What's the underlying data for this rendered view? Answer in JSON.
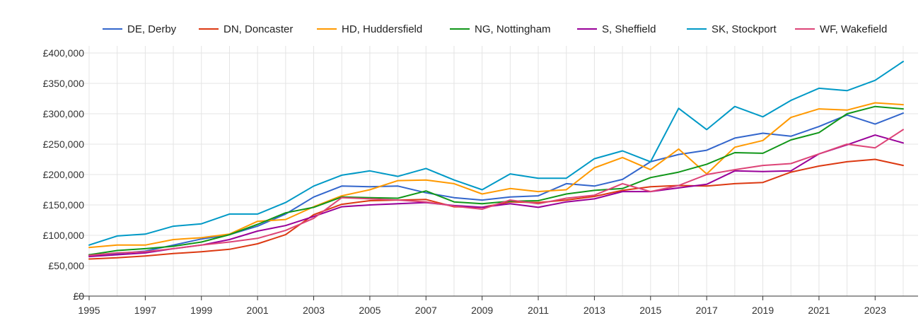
{
  "chart_data": {
    "type": "line",
    "title": "",
    "xlabel": "",
    "ylabel": "",
    "x": [
      1995,
      1996,
      1997,
      1998,
      1999,
      2000,
      2001,
      2002,
      2003,
      2004,
      2005,
      2006,
      2007,
      2008,
      2009,
      2010,
      2011,
      2012,
      2013,
      2014,
      2015,
      2016,
      2017,
      2018,
      2019,
      2020,
      2021,
      2022,
      2023,
      2024
    ],
    "xlim": [
      1995,
      2024
    ],
    "ylim": [
      0,
      400000
    ],
    "x_ticks": [
      1995,
      1997,
      1999,
      2001,
      2003,
      2005,
      2007,
      2009,
      2011,
      2013,
      2015,
      2017,
      2019,
      2021,
      2023
    ],
    "x_tick_labels": [
      "1995",
      "1997",
      "1999",
      "2001",
      "2003",
      "2005",
      "2007",
      "2009",
      "2011",
      "2013",
      "2015",
      "2017",
      "2019",
      "2021",
      "2023"
    ],
    "y_ticks": [
      0,
      50000,
      100000,
      150000,
      200000,
      250000,
      300000,
      350000,
      400000
    ],
    "y_tick_labels": [
      "£0",
      "£50,000",
      "£100,000",
      "£150,000",
      "£200,000",
      "£250,000",
      "£300,000",
      "£350,000",
      "£400,000"
    ],
    "grid": true,
    "legend": "top",
    "series": [
      {
        "name": "DE, Derby",
        "color": "#3366cc",
        "values": [
          67000,
          70000,
          74000,
          84000,
          94000,
          101000,
          115000,
          135000,
          163000,
          181000,
          180000,
          181000,
          170000,
          162000,
          158000,
          163000,
          165000,
          185000,
          181000,
          192000,
          221000,
          233000,
          240000,
          260000,
          268000,
          263000,
          279000,
          298000,
          283000,
          301000
        ]
      },
      {
        "name": "DN, Doncaster",
        "color": "#dc3912",
        "values": [
          61000,
          63000,
          66000,
          70000,
          73000,
          77000,
          86000,
          101000,
          134000,
          151000,
          157000,
          158000,
          159000,
          147000,
          146000,
          155000,
          154000,
          158000,
          164000,
          174000,
          180000,
          182000,
          181000,
          185000,
          187000,
          204000,
          214000,
          221000,
          225000,
          215000
        ]
      },
      {
        "name": "HD, Huddersfield",
        "color": "#ff9900",
        "values": [
          80000,
          84000,
          84000,
          93000,
          96000,
          102000,
          123000,
          126000,
          147000,
          165000,
          175000,
          190000,
          191000,
          185000,
          168000,
          177000,
          172000,
          175000,
          211000,
          228000,
          208000,
          242000,
          201000,
          245000,
          256000,
          294000,
          308000,
          306000,
          318000,
          315000
        ]
      },
      {
        "name": "NG, Nottingham",
        "color": "#109618",
        "values": [
          68000,
          75000,
          78000,
          82000,
          89000,
          101000,
          118000,
          137000,
          146000,
          163000,
          162000,
          161000,
          173000,
          155000,
          152000,
          156000,
          157000,
          168000,
          174000,
          177000,
          195000,
          204000,
          217000,
          236000,
          235000,
          257000,
          269000,
          300000,
          312000,
          308000
        ]
      },
      {
        "name": "S, Sheffield",
        "color": "#990099",
        "values": [
          65000,
          68000,
          71000,
          78000,
          84000,
          93000,
          107000,
          116000,
          131000,
          147000,
          150000,
          152000,
          154000,
          149000,
          146000,
          152000,
          146000,
          155000,
          160000,
          172000,
          172000,
          178000,
          184000,
          206000,
          205000,
          206000,
          234000,
          249000,
          265000,
          252000
        ]
      },
      {
        "name": "SK, Stockport",
        "color": "#0099c6",
        "values": [
          84000,
          99000,
          102000,
          115000,
          119000,
          135000,
          135000,
          154000,
          181000,
          199000,
          206000,
          197000,
          210000,
          191000,
          175000,
          201000,
          194000,
          194000,
          226000,
          239000,
          221000,
          309000,
          274000,
          312000,
          295000,
          322000,
          342000,
          338000,
          355000,
          386000
        ]
      },
      {
        "name": "WF, Wakefield",
        "color": "#dd4477",
        "values": [
          67000,
          71000,
          73000,
          78000,
          84000,
          89000,
          95000,
          108000,
          128000,
          162000,
          160000,
          158000,
          155000,
          148000,
          143000,
          158000,
          152000,
          161000,
          166000,
          185000,
          172000,
          182000,
          200000,
          208000,
          215000,
          218000,
          234000,
          250000,
          244000,
          274000
        ]
      }
    ]
  }
}
